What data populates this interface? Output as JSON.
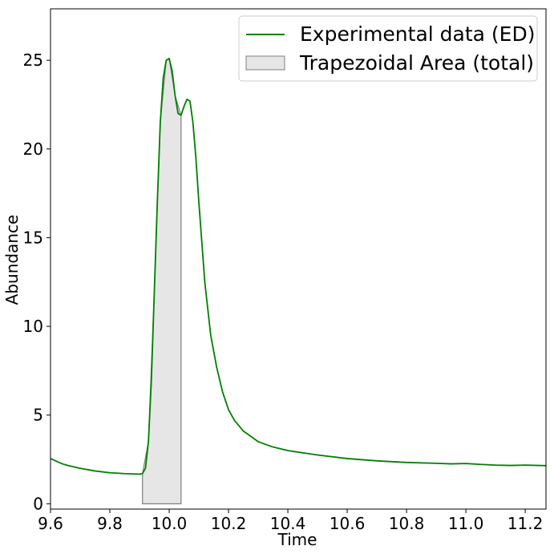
{
  "chart_data": {
    "type": "line",
    "title": "",
    "xlabel": "Time",
    "ylabel": "Abundance",
    "xlim": [
      9.6,
      11.27
    ],
    "ylim": [
      -0.3,
      27.9
    ],
    "grid": false,
    "legend_position": "top-right",
    "x_ticks": [
      9.6,
      9.8,
      10.0,
      10.2,
      10.4,
      10.6,
      10.8,
      11.0,
      11.2
    ],
    "x_tick_labels": [
      "9.6",
      "9.8",
      "10.0",
      "10.2",
      "10.4",
      "10.6",
      "10.8",
      "11.0",
      "11.2"
    ],
    "y_ticks": [
      0,
      5,
      10,
      15,
      20,
      25
    ],
    "y_tick_labels": [
      "0",
      "5",
      "10",
      "15",
      "20",
      "25"
    ],
    "series": [
      {
        "name": "Experimental data (ED)",
        "color": "#008000",
        "x": [
          9.6,
          9.62,
          9.64,
          9.66,
          9.7,
          9.75,
          9.8,
          9.85,
          9.9,
          9.91,
          9.92,
          9.93,
          9.94,
          9.95,
          9.96,
          9.97,
          9.98,
          9.99,
          10.0,
          10.01,
          10.02,
          10.03,
          10.04,
          10.05,
          10.06,
          10.07,
          10.08,
          10.09,
          10.1,
          10.12,
          10.14,
          10.16,
          10.18,
          10.2,
          10.22,
          10.25,
          10.3,
          10.35,
          10.4,
          10.5,
          10.6,
          10.7,
          10.8,
          10.9,
          10.95,
          11.0,
          11.05,
          11.1,
          11.15,
          11.2,
          11.27
        ],
        "y": [
          2.55,
          2.4,
          2.25,
          2.15,
          2.0,
          1.85,
          1.75,
          1.7,
          1.67,
          1.7,
          2.0,
          3.5,
          7.0,
          12.0,
          17.0,
          21.5,
          24.0,
          25.0,
          25.1,
          24.4,
          23.0,
          22.0,
          21.9,
          22.4,
          22.8,
          22.7,
          21.5,
          19.5,
          17.0,
          12.5,
          9.5,
          7.7,
          6.3,
          5.3,
          4.7,
          4.1,
          3.5,
          3.2,
          3.0,
          2.75,
          2.55,
          2.42,
          2.33,
          2.28,
          2.25,
          2.27,
          2.22,
          2.18,
          2.16,
          2.18,
          2.15
        ]
      }
    ],
    "filled_regions": [
      {
        "name": "Trapezoidal Area (total)",
        "fill": "#e6e6e6",
        "stroke": "#808080",
        "x": [
          9.91,
          9.93,
          9.95,
          9.97,
          9.99,
          10.0,
          10.02,
          10.04
        ],
        "y": [
          1.7,
          3.5,
          12.0,
          21.5,
          25.0,
          25.1,
          23.0,
          21.9
        ]
      }
    ]
  }
}
